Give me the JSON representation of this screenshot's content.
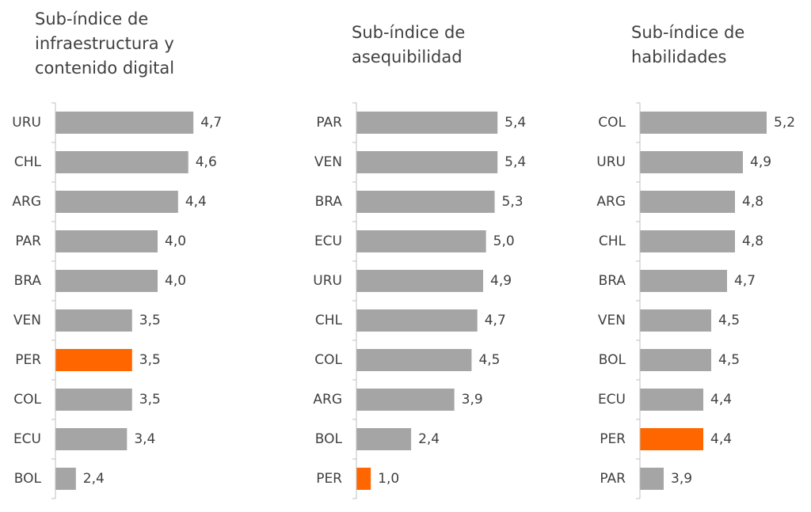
{
  "chart_data": [
    {
      "type": "barh",
      "title": [
        "Sub-índice de",
        "infraestructura y",
        "contenido digital"
      ],
      "categories": [
        "URU",
        "CHL",
        "ARG",
        "PAR",
        "BRA",
        "VEN",
        "PER",
        "COL",
        "ECU",
        "BOL"
      ],
      "values": [
        4.7,
        4.6,
        4.4,
        4.0,
        4.0,
        3.5,
        3.5,
        3.5,
        3.4,
        2.4
      ],
      "value_labels": [
        "4,7",
        "4,6",
        "4,4",
        "4,0",
        "4,0",
        "3,5",
        "3,5",
        "3,5",
        "3,4",
        "2,4"
      ],
      "colors": [
        "#a5a5a5",
        "#a5a5a5",
        "#a5a5a5",
        "#a5a5a5",
        "#a5a5a5",
        "#a5a5a5",
        "#ff6600",
        "#a5a5a5",
        "#a5a5a5",
        "#a5a5a5"
      ],
      "xlim": [
        2,
        5.1
      ]
    },
    {
      "type": "barh",
      "title": [
        "Sub-índice de",
        "asequibilidad"
      ],
      "categories": [
        "PAR",
        "VEN",
        "BRA",
        "ECU",
        "URU",
        "CHL",
        "COL",
        "ARG",
        "BOL",
        "PER"
      ],
      "values": [
        5.4,
        5.4,
        5.3,
        5.0,
        4.9,
        4.7,
        4.5,
        3.9,
        2.4,
        1.0
      ],
      "value_labels": [
        "5,4",
        "5,4",
        "5,3",
        "5,0",
        "4,9",
        "4,7",
        "4,5",
        "3,9",
        "2,4",
        "1,0"
      ],
      "colors": [
        "#a5a5a5",
        "#a5a5a5",
        "#a5a5a5",
        "#a5a5a5",
        "#a5a5a5",
        "#a5a5a5",
        "#a5a5a5",
        "#a5a5a5",
        "#a5a5a5",
        "#ff6600"
      ],
      "xlim": [
        0.5,
        6
      ]
    },
    {
      "type": "barh",
      "title": [
        "Sub-índice de",
        "habilidades"
      ],
      "categories": [
        "COL",
        "URU",
        "ARG",
        "CHL",
        "BRA",
        "VEN",
        "BOL",
        "ECU",
        "PER",
        "PAR"
      ],
      "values": [
        5.2,
        4.9,
        4.8,
        4.8,
        4.7,
        4.5,
        4.5,
        4.4,
        4.4,
        3.9
      ],
      "value_labels": [
        "5,2",
        "4,9",
        "4,8",
        "4,8",
        "4,7",
        "4,5",
        "4,5",
        "4,4",
        "4,4",
        "3,9"
      ],
      "colors": [
        "#a5a5a5",
        "#a5a5a5",
        "#a5a5a5",
        "#a5a5a5",
        "#a5a5a5",
        "#a5a5a5",
        "#a5a5a5",
        "#a5a5a5",
        "#ff6600",
        "#a5a5a5"
      ],
      "xlim": [
        3.6,
        5.6
      ]
    }
  ]
}
